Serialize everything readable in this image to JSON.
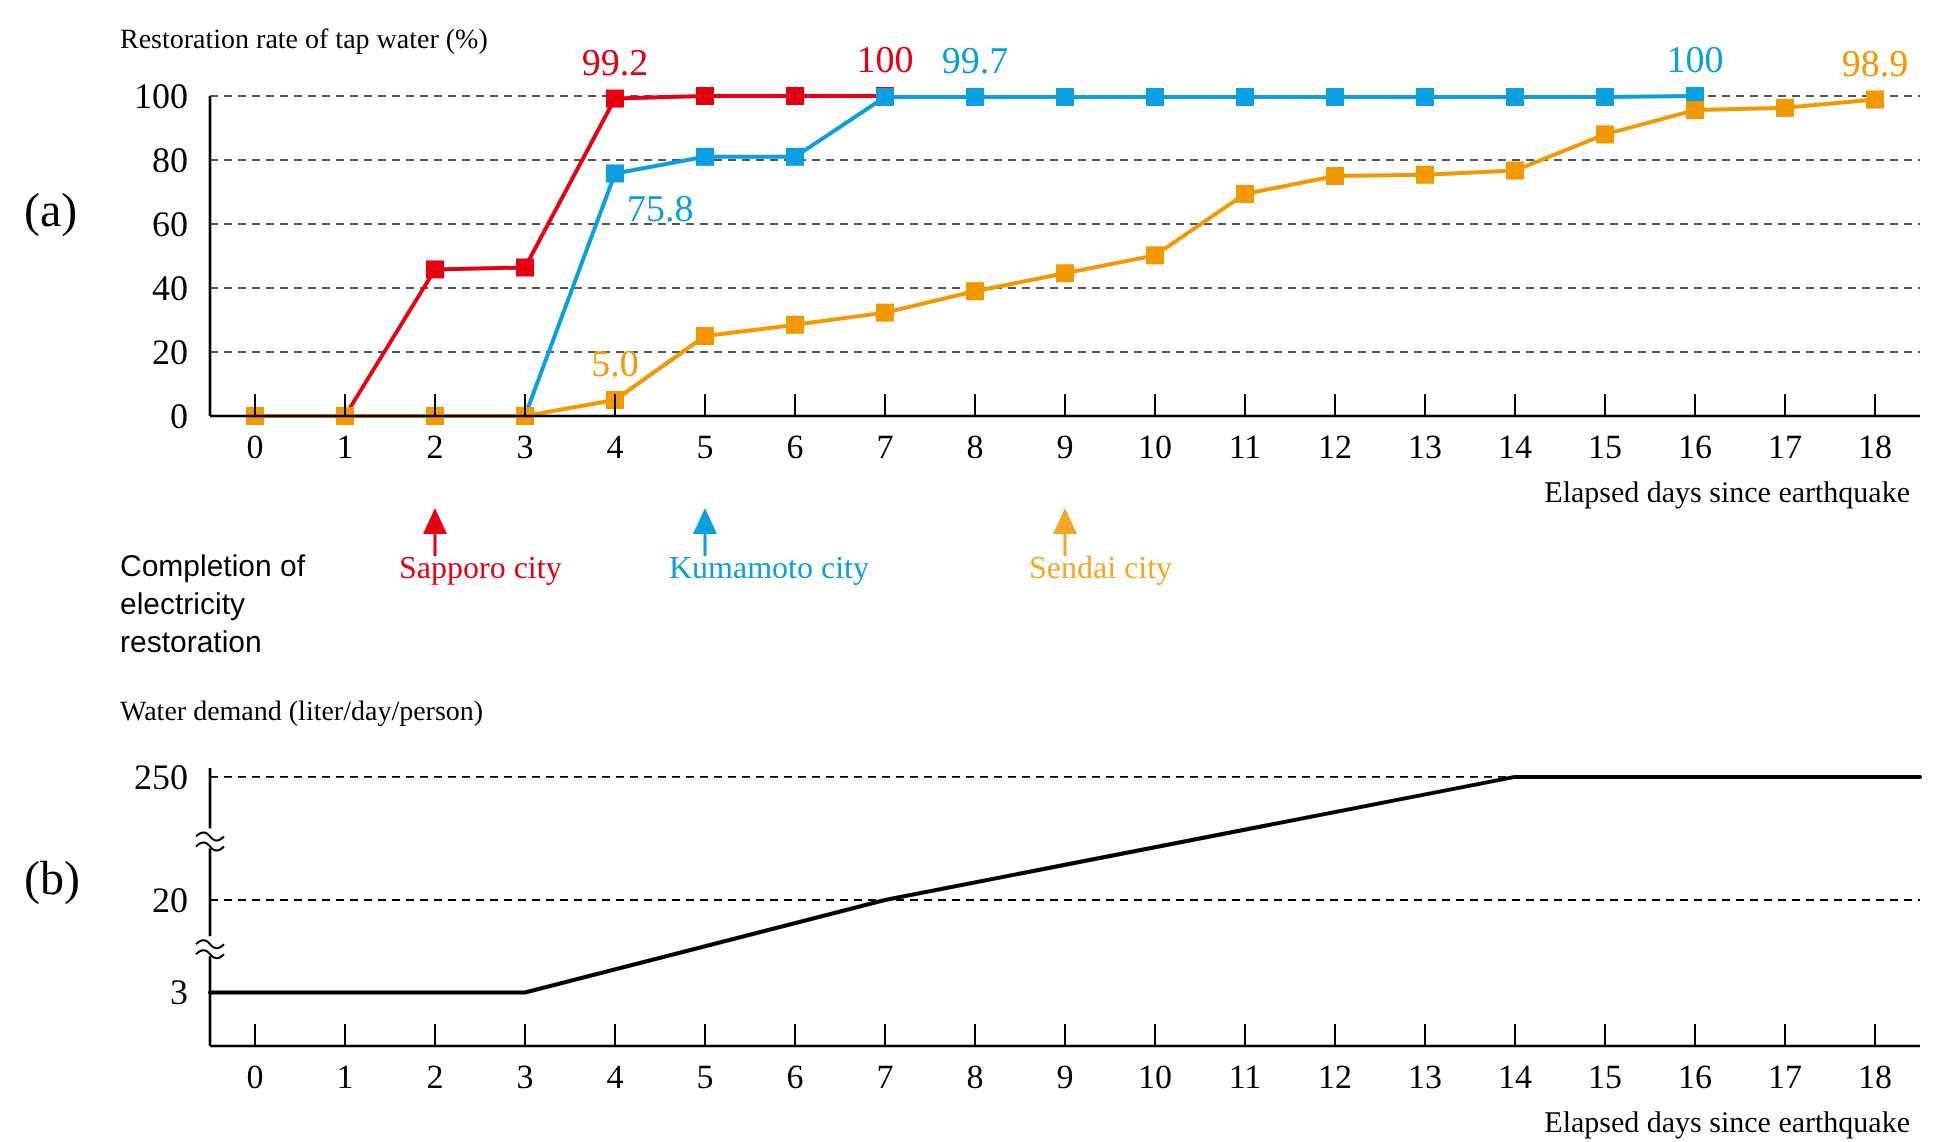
{
  "chart_data": [
    {
      "type": "line",
      "title": "(a)",
      "ylabel": "Restoration rate of tap water (%)",
      "xlabel": "Elapsed days since earthquake",
      "xlim": [
        -0.5,
        18.5
      ],
      "xticks": [
        0,
        1,
        2,
        3,
        4,
        5,
        6,
        7,
        8,
        9,
        10,
        11,
        12,
        13,
        14,
        15,
        16,
        17,
        18
      ],
      "ylim": [
        0,
        100
      ],
      "yticks": [
        0,
        20,
        40,
        60,
        80,
        100
      ],
      "grid": "y",
      "marker": "square",
      "line_style": "solid",
      "series": [
        {
          "color": "#e60012",
          "x": [
            0,
            1,
            2,
            3,
            4,
            5,
            6,
            7
          ],
          "values": [
            0,
            0,
            45.8,
            46.4,
            99.2,
            100,
            100,
            100
          ],
          "value_labels": [
            null,
            null,
            null,
            null,
            "99.2",
            null,
            null,
            "100"
          ]
        },
        {
          "color": "#0a9fe0",
          "x": [
            3,
            4,
            5,
            6,
            7,
            8,
            9,
            10,
            11,
            12,
            13,
            14,
            15,
            16
          ],
          "values": [
            0,
            75.8,
            81,
            81,
            99.7,
            99.7,
            99.7,
            99.7,
            99.7,
            99.7,
            99.7,
            99.7,
            99.7,
            100
          ],
          "value_labels": [
            null,
            "75.8",
            null,
            null,
            null,
            "99.7",
            null,
            null,
            null,
            null,
            null,
            null,
            null,
            "100"
          ]
        },
        {
          "color": "#f39800",
          "x": [
            0,
            1,
            2,
            3,
            4,
            5,
            6,
            7,
            8,
            9,
            10,
            11,
            12,
            13,
            14,
            15,
            16,
            17,
            18
          ],
          "values": [
            0,
            0,
            0,
            0,
            5.0,
            25,
            28.5,
            32.3,
            39,
            44.6,
            50.2,
            69.4,
            75,
            75.4,
            76.7,
            88,
            95.6,
            96.3,
            98.9
          ],
          "value_labels": [
            null,
            null,
            null,
            null,
            "5.0",
            null,
            null,
            null,
            null,
            null,
            null,
            null,
            null,
            null,
            null,
            null,
            null,
            null,
            "98.9"
          ]
        }
      ],
      "annotations": [
        "Completion of electricity restoration"
      ],
      "ref_lines": [
        {
          "axis": "x",
          "value": 2,
          "label": "Sapporo city",
          "color": "#e60012"
        },
        {
          "axis": "x",
          "value": 5,
          "label": "Kumamoto city",
          "color": "#0a9fe0"
        },
        {
          "axis": "x",
          "value": 9,
          "label": "Sendai city",
          "color": "#f5a623"
        }
      ]
    },
    {
      "type": "line",
      "title": "(b)",
      "ylabel": "Water demand (liter/day/person)",
      "xlabel": "Elapsed days since earthquake",
      "xlim": [
        -0.5,
        18.5
      ],
      "xticks": [
        0,
        1,
        2,
        3,
        4,
        5,
        6,
        7,
        8,
        9,
        10,
        11,
        12,
        13,
        14,
        15,
        16,
        17,
        18
      ],
      "ylim": [
        1,
        300
      ],
      "yticks": [
        3,
        20,
        250
      ],
      "log": "y",
      "line_style": "solid",
      "series": [
        {
          "color": "#000000",
          "x": [
            -0.5,
            3,
            7,
            14,
            18.5
          ],
          "values": [
            3,
            3,
            20,
            250,
            250
          ]
        }
      ],
      "ref_lines": [
        {
          "axis": "y",
          "value": 20,
          "line_style": "dashed"
        },
        {
          "axis": "y",
          "value": 250,
          "line_style": "dashed"
        }
      ]
    }
  ]
}
